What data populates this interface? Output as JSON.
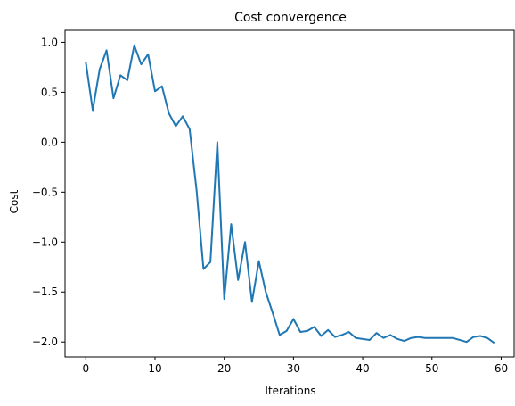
{
  "chart_data": {
    "type": "line",
    "title": "Cost convergence",
    "xlabel": "Iterations",
    "ylabel": "Cost",
    "xlim": [
      -3,
      62
    ],
    "ylim": [
      -2.15,
      1.12
    ],
    "xticks": [
      0,
      10,
      20,
      30,
      40,
      50,
      60
    ],
    "yticks": [
      1.0,
      0.5,
      0.0,
      -0.5,
      -1.0,
      -1.5,
      -2.0
    ],
    "ytick_labels": [
      "1.0",
      "0.5",
      "0.0",
      "−0.5",
      "−1.0",
      "−1.5",
      "−2.0"
    ],
    "xtick_labels": [
      "0",
      "10",
      "20",
      "30",
      "40",
      "50",
      "60"
    ],
    "grid": false,
    "series": [
      {
        "color": "#1f77b4",
        "x": [
          0,
          1,
          2,
          3,
          4,
          5,
          6,
          7,
          8,
          9,
          10,
          11,
          12,
          13,
          14,
          15,
          16,
          17,
          18,
          19,
          20,
          21,
          22,
          23,
          24,
          25,
          26,
          27,
          28,
          29,
          30,
          31,
          32,
          33,
          34,
          35,
          36,
          37,
          38,
          39,
          40,
          41,
          42,
          43,
          44,
          45,
          46,
          47,
          48,
          49,
          50,
          51,
          52,
          53,
          54,
          55,
          56,
          57,
          58,
          59
        ],
        "values": [
          0.8,
          0.32,
          0.73,
          0.92,
          0.44,
          0.67,
          0.62,
          0.97,
          0.78,
          0.88,
          0.51,
          0.56,
          0.29,
          0.16,
          0.26,
          0.13,
          -0.48,
          -1.27,
          -1.2,
          0.0,
          -1.57,
          -0.82,
          -1.38,
          -1.0,
          -1.6,
          -1.19,
          -1.5,
          -1.71,
          -1.93,
          -1.89,
          -1.77,
          -1.9,
          -1.89,
          -1.85,
          -1.94,
          -1.88,
          -1.95,
          -1.93,
          -1.9,
          -1.96,
          -1.97,
          -1.98,
          -1.91,
          -1.96,
          -1.93,
          -1.97,
          -1.99,
          -1.96,
          -1.95,
          -1.96,
          -1.96,
          -1.96,
          -1.96,
          -1.96,
          -1.98,
          -2.0,
          -1.95,
          -1.94,
          -1.96,
          -2.01
        ]
      }
    ]
  }
}
